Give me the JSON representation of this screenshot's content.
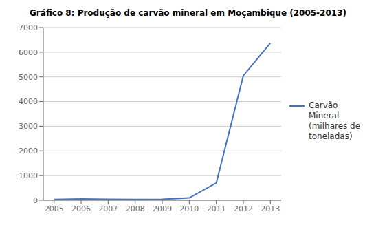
{
  "chart_data": {
    "type": "line",
    "title": "Gráfico 8: Produção de carvão mineral em Moçambique (2005-2013)",
    "x": [
      2005,
      2006,
      2007,
      2008,
      2009,
      2010,
      2011,
      2012,
      2013
    ],
    "series": [
      {
        "name": "Carvão Mineral\n(milhares de\ntoneladas)",
        "color": "#4472C4",
        "values": [
          36,
          55,
          45,
          38,
          42,
          95,
          700,
          5050,
          6370
        ]
      }
    ],
    "xlim": [
      2004.6,
      2013.4
    ],
    "xticks": [
      2005,
      2006,
      2007,
      2008,
      2009,
      2010,
      2011,
      2012,
      2013
    ],
    "ylim": [
      0,
      7000
    ],
    "yticks": [
      0,
      1000,
      2000,
      3000,
      4000,
      5000,
      6000,
      7000
    ],
    "grid": true,
    "legend": "right"
  }
}
